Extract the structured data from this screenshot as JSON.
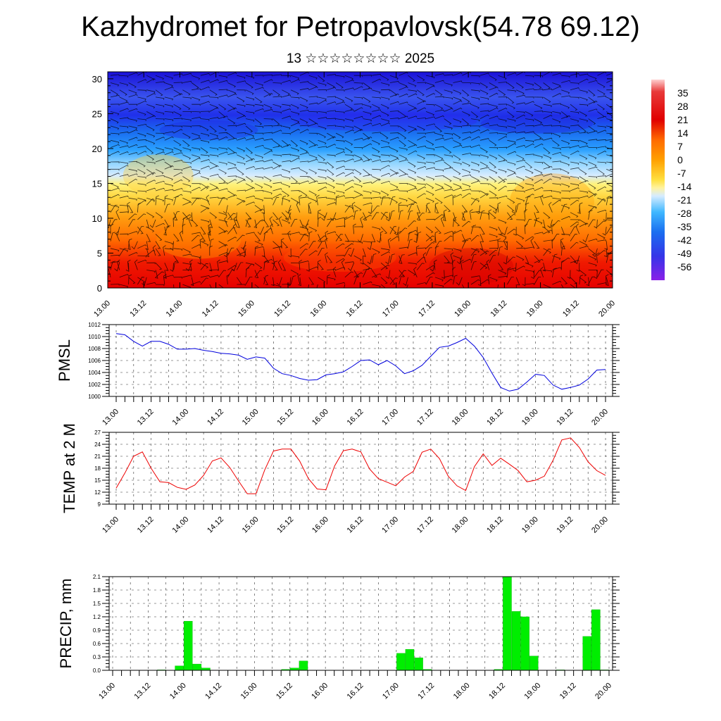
{
  "header": {
    "title": "Kazhydromet for Petropavlovsk(54.78 69.12)",
    "subtitle": "13 ☆☆☆☆☆☆☆☆ 2025"
  },
  "chart_data": [
    {
      "type": "heatmap",
      "name": "vertical-cross-section",
      "x_tick_labels": [
        "13.00",
        "13.12",
        "14.00",
        "14.12",
        "15.00",
        "15.12",
        "16.00",
        "16.12",
        "17.00",
        "17.12",
        "18.00",
        "18.12",
        "19.00",
        "19.12",
        "20.00"
      ],
      "y_tick_labels": [
        "0",
        "5",
        "10",
        "15",
        "20",
        "25",
        "30"
      ],
      "ylim": [
        0,
        31
      ],
      "colorbar_labels": [
        "35",
        "28",
        "21",
        "14",
        "7",
        "0",
        "-7",
        "-14",
        "-21",
        "-28",
        "-35",
        "-42",
        "-49",
        "-56"
      ],
      "colorbar_range": [
        -63,
        42
      ],
      "colors": {
        "hot": "#e30000",
        "warm": "#ff9a00",
        "mild": "#ffe84d",
        "cold": "#1a7fe0",
        "frigid": "#1010d0",
        "barb": "#000000"
      }
    },
    {
      "type": "line",
      "name": "pmsl",
      "ylabel": "PMSL",
      "y_tick_labels": [
        "1000",
        "1002",
        "1004",
        "1006",
        "1008",
        "1010",
        "1012"
      ],
      "ylim": [
        1000,
        1012
      ],
      "x_tick_labels": [
        "13.00",
        "13.12",
        "14.00",
        "14.12",
        "15.00",
        "15.12",
        "16.00",
        "16.12",
        "17.00",
        "17.12",
        "18.00",
        "18.12",
        "19.00",
        "19.12",
        "20.00"
      ],
      "x": [
        0,
        3,
        6,
        9,
        12,
        15,
        18,
        21,
        24,
        27,
        30,
        33,
        36,
        39,
        42,
        45,
        48,
        51,
        54,
        57,
        60,
        63,
        66,
        69,
        72,
        75,
        78,
        81,
        84,
        87,
        90,
        93,
        96,
        99,
        102,
        105,
        108,
        111,
        114,
        117,
        120,
        123,
        126,
        129,
        132,
        135,
        138,
        141,
        144,
        147,
        150,
        153,
        156,
        159,
        162,
        165,
        168
      ],
      "values": [
        1010.5,
        1010.3,
        1009.2,
        1008.4,
        1009.2,
        1009.2,
        1008.7,
        1007.9,
        1007.9,
        1008.0,
        1007.7,
        1007.5,
        1007.2,
        1007.1,
        1006.9,
        1006.2,
        1006.6,
        1006.4,
        1004.7,
        1003.8,
        1003.5,
        1003.0,
        1002.7,
        1002.8,
        1003.6,
        1003.8,
        1004.1,
        1005.0,
        1006.0,
        1006.1,
        1005.3,
        1006.0,
        1005.1,
        1003.8,
        1004.3,
        1005.2,
        1006.7,
        1008.2,
        1008.4,
        1009.0,
        1009.7,
        1008.4,
        1006.5,
        1003.9,
        1001.5,
        1000.9,
        1001.2,
        1002.4,
        1003.7,
        1003.5,
        1001.9,
        1001.2,
        1001.5,
        1001.9,
        1002.9,
        1004.4,
        1004.5
      ],
      "colors": {
        "line": "#0000dd"
      }
    },
    {
      "type": "line",
      "name": "temp-2m",
      "ylabel": "TEMP at 2 M",
      "y_tick_labels": [
        "9",
        "12",
        "15",
        "18",
        "21",
        "24",
        "27"
      ],
      "ylim": [
        9,
        27
      ],
      "x_tick_labels": [
        "13.00",
        "13.12",
        "14.00",
        "14.12",
        "15.00",
        "15.12",
        "16.00",
        "16.12",
        "17.00",
        "17.12",
        "18.00",
        "18.12",
        "19.00",
        "19.12",
        "20.00"
      ],
      "x": [
        0,
        3,
        6,
        9,
        12,
        15,
        18,
        21,
        24,
        27,
        30,
        33,
        36,
        39,
        42,
        45,
        48,
        51,
        54,
        57,
        60,
        63,
        66,
        69,
        72,
        75,
        78,
        81,
        84,
        87,
        90,
        93,
        96,
        99,
        102,
        105,
        108,
        111,
        114,
        117,
        120,
        123,
        126,
        129,
        132,
        135,
        138,
        141,
        144,
        147,
        150,
        153,
        156,
        159,
        162,
        165,
        168
      ],
      "values": [
        13.0,
        16.8,
        21.0,
        22.1,
        18.0,
        14.6,
        14.4,
        13.2,
        12.7,
        13.8,
        16.2,
        19.8,
        20.6,
        18.2,
        14.8,
        11.6,
        11.6,
        17.6,
        22.3,
        22.8,
        22.8,
        19.8,
        15.4,
        12.8,
        12.6,
        18.6,
        22.4,
        22.8,
        22.1,
        17.8,
        15.4,
        14.5,
        13.6,
        15.8,
        17.2,
        22.0,
        22.8,
        20.4,
        16.0,
        13.6,
        12.4,
        18.4,
        21.6,
        18.7,
        20.5,
        19.0,
        17.4,
        14.6,
        15.0,
        16.0,
        20.0,
        25.1,
        25.6,
        23.2,
        19.6,
        17.4,
        16.2
      ],
      "colors": {
        "line": "#ee0000"
      }
    },
    {
      "type": "bar",
      "name": "precip",
      "ylabel": "PRECIP, mm",
      "y_tick_labels": [
        "0.0",
        "0.3",
        "0.6",
        "0.9",
        "1.2",
        "1.5",
        "1.8",
        "2.1"
      ],
      "ylim": [
        0,
        2.1
      ],
      "x_tick_labels": [
        "13.00",
        "13.12",
        "14.00",
        "14.12",
        "15.00",
        "15.12",
        "16.00",
        "16.12",
        "17.00",
        "17.12",
        "18.00",
        "18.12",
        "19.00",
        "19.12",
        "20.00"
      ],
      "x": [
        0,
        3,
        6,
        9,
        12,
        15,
        18,
        21,
        24,
        27,
        30,
        33,
        36,
        39,
        42,
        45,
        48,
        51,
        54,
        57,
        60,
        63,
        66,
        69,
        72,
        75,
        78,
        81,
        84,
        87,
        90,
        93,
        96,
        99,
        102,
        105,
        108,
        111,
        114,
        117,
        120,
        123,
        126,
        129,
        132,
        135,
        138,
        141,
        144,
        147,
        150,
        153,
        156,
        159,
        162,
        165
      ],
      "values": [
        0,
        0,
        0,
        0,
        0,
        0.01,
        0,
        0.1,
        1.1,
        0.14,
        0.05,
        0,
        0,
        0,
        0,
        0,
        0,
        0,
        0,
        0.02,
        0.05,
        0.21,
        0,
        0,
        0,
        0,
        0,
        0,
        0,
        0,
        0,
        0,
        0.38,
        0.47,
        0.28,
        0.02,
        0,
        0,
        0,
        0,
        0,
        0,
        0,
        0.02,
        2.1,
        1.32,
        1.2,
        0.32,
        0,
        0,
        0.01,
        0,
        0,
        0.76,
        1.36,
        0.01
      ],
      "colors": {
        "bar": "#00ee00"
      }
    }
  ]
}
